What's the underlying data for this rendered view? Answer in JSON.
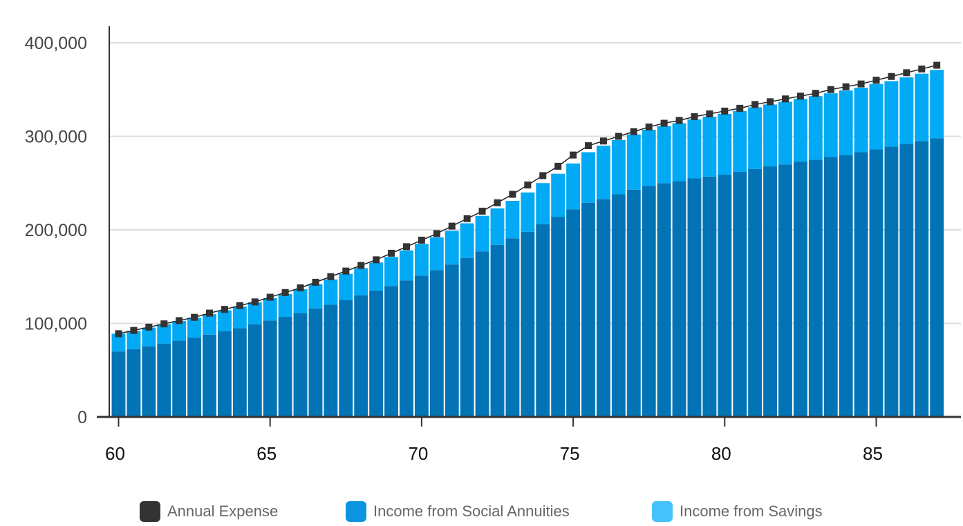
{
  "chart_data": {
    "type": "bar",
    "stacked": true,
    "title": "",
    "xlabel": "",
    "ylabel": "",
    "x": [
      60,
      60.5,
      61,
      61.5,
      62,
      62.5,
      63,
      63.5,
      64,
      64.5,
      65,
      65.5,
      66,
      66.5,
      67,
      67.5,
      68,
      68.5,
      69,
      69.5,
      70,
      70.5,
      71,
      71.5,
      72,
      72.5,
      73,
      73.5,
      74,
      74.5,
      75,
      75.5,
      76,
      76.5,
      77,
      77.5,
      78,
      78.5,
      79,
      79.5,
      80,
      80.5,
      81,
      81.5,
      82,
      82.5,
      83,
      83.5,
      84,
      84.5,
      85,
      85.5,
      86,
      86.5,
      87
    ],
    "x_ticks": [
      60,
      65,
      70,
      75,
      80,
      85
    ],
    "x_tick_labels": [
      "60",
      "65",
      "70",
      "75",
      "80",
      "85"
    ],
    "xlim": [
      59.8,
      87.5
    ],
    "ylim": [
      0,
      400000
    ],
    "y_ticks": [
      0,
      100000,
      200000,
      300000,
      400000
    ],
    "y_tick_labels": [
      "0",
      "100,000",
      "200,000",
      "300,000",
      "400,000"
    ],
    "grid": "horizontal",
    "legend_position": "bottom",
    "series": [
      {
        "name": "Income from Social Annuities",
        "kind": "bar",
        "color": "#0273b5",
        "values": [
          70000,
          72500,
          75500,
          78500,
          81500,
          84500,
          88000,
          91500,
          95000,
          99000,
          103000,
          107000,
          111000,
          116000,
          120000,
          125000,
          130000,
          135000,
          140000,
          146000,
          151000,
          157000,
          163000,
          170000,
          177000,
          184000,
          191000,
          198000,
          206000,
          214000,
          222000,
          229000,
          233000,
          238000,
          243000,
          247000,
          250000,
          252000,
          255000,
          257000,
          259000,
          262000,
          265000,
          268000,
          270000,
          273000,
          275000,
          278000,
          280000,
          283000,
          286000,
          289000,
          292000,
          295000,
          298000
        ]
      },
      {
        "name": "Income from Savings",
        "kind": "bar",
        "color": "#02a9f4",
        "values": [
          19000,
          19500,
          20000,
          20500,
          21000,
          21500,
          22000,
          22500,
          23000,
          23500,
          24000,
          24500,
          25500,
          26000,
          27000,
          28000,
          29000,
          30000,
          31000,
          32000,
          34000,
          35000,
          36000,
          37000,
          38000,
          39000,
          40000,
          42000,
          44000,
          46000,
          49000,
          54000,
          57000,
          58000,
          59000,
          60000,
          61000,
          62000,
          63000,
          64000,
          65000,
          65000,
          66000,
          66000,
          67000,
          67000,
          68000,
          68000,
          69000,
          69000,
          70000,
          70000,
          71000,
          72000,
          73000
        ]
      },
      {
        "name": "Annual Expense",
        "kind": "line",
        "color": "#333333",
        "values": [
          89000,
          92500,
          96000,
          99500,
          103000,
          106500,
          111000,
          115000,
          119000,
          123000,
          128000,
          133000,
          138000,
          144000,
          150000,
          156000,
          162000,
          168000,
          175000,
          182000,
          189000,
          196000,
          204000,
          212000,
          220000,
          229000,
          238000,
          248000,
          258000,
          268000,
          280000,
          290000,
          295000,
          300000,
          305000,
          310000,
          314000,
          317000,
          321000,
          324000,
          327000,
          330000,
          334000,
          337000,
          340000,
          343000,
          346000,
          350000,
          353000,
          356000,
          360000,
          364000,
          368000,
          372000,
          376000
        ]
      }
    ]
  },
  "legend": [
    {
      "label": "Annual Expense",
      "color": "#333333"
    },
    {
      "label": "Income from Social Annuities",
      "color": "#0b95e0"
    },
    {
      "label": "Income from Savings",
      "color": "#45c2fb"
    }
  ]
}
